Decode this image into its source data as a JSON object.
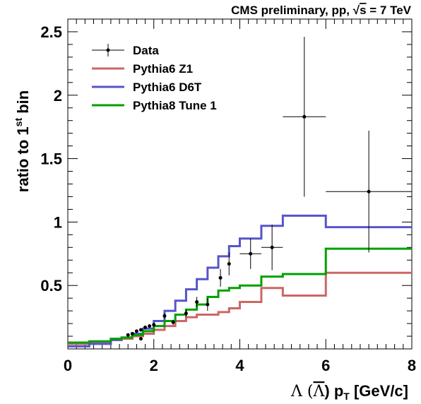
{
  "header": {
    "prefix": "CMS preliminary, pp, ",
    "sqrt_symbol": "√",
    "sqrt_arg": "s",
    "suffix": " = 7 TeV"
  },
  "axes": {
    "xlabel": {
      "lambda": "Λ (",
      "antilambda": "Λ",
      "mid": ") p",
      "sub": "T",
      "units": " [GeV/c]"
    },
    "ylabel": {
      "main": "ratio to 1",
      "sup": "st",
      "tail": " bin"
    }
  },
  "chart_data": {
    "type": "line",
    "title": "CMS preliminary, pp, √s = 7 TeV",
    "xlabel": "Λ (Λ̄) pT [GeV/c]",
    "ylabel": "ratio to 1st bin",
    "xlim": [
      0,
      8
    ],
    "ylim": [
      0,
      2.6
    ],
    "x_ticks": [
      "0",
      "2",
      "4",
      "6",
      "8"
    ],
    "y_ticks": [
      "0.5",
      "1",
      "1.5",
      "2",
      "2.5"
    ],
    "legend_position": "top-left",
    "grid": false,
    "series": [
      {
        "name": "Data",
        "kind": "points",
        "color": "#000000",
        "points": [
          {
            "x": 1.4,
            "y": 0.11,
            "ey": 0.01
          },
          {
            "x": 1.5,
            "y": 0.12,
            "ey": 0.01
          },
          {
            "x": 1.6,
            "y": 0.14,
            "ey": 0.01
          },
          {
            "x": 1.7,
            "y": 0.15,
            "ey": 0.01
          },
          {
            "x": 1.8,
            "y": 0.17,
            "ey": 0.01
          },
          {
            "x": 1.9,
            "y": 0.18,
            "ey": 0.015
          },
          {
            "x": 2.0,
            "y": 0.19,
            "ey": 0.015
          },
          {
            "x": 1.7,
            "y": 0.08,
            "ey": 0.01
          },
          {
            "x": 2.25,
            "y": 0.26,
            "ey": 0.02
          },
          {
            "x": 2.45,
            "y": 0.21,
            "ey": 0.02
          },
          {
            "x": 2.75,
            "y": 0.28,
            "ey": 0.03
          },
          {
            "x": 3.0,
            "y": 0.37,
            "ey": 0.04
          },
          {
            "x": 3.25,
            "y": 0.35,
            "ey": 0.05
          },
          {
            "x": 3.55,
            "y": 0.56,
            "ey": 0.07
          },
          {
            "x": 3.75,
            "y": 0.67,
            "ey": 0.09
          },
          {
            "x": 4.25,
            "y": 0.75,
            "ey": 0.12,
            "ex": 0.25
          },
          {
            "x": 4.75,
            "y": 0.8,
            "ey": 0.18,
            "ex": 0.25
          },
          {
            "x": 5.5,
            "y": 1.83,
            "ey": 0.63,
            "ex": 0.5
          },
          {
            "x": 7.0,
            "y": 1.24,
            "ey": 0.48,
            "ex": 1.0
          }
        ]
      },
      {
        "name": "Pythia6 Z1",
        "kind": "step",
        "color": "#cc6666",
        "edges": [
          0,
          0.5,
          1.0,
          1.25,
          1.5,
          1.75,
          2.0,
          2.25,
          2.5,
          2.75,
          3.0,
          3.25,
          3.5,
          3.75,
          4.0,
          4.5,
          5.0,
          6.0,
          8.0
        ],
        "values": [
          0.04,
          0.05,
          0.07,
          0.08,
          0.1,
          0.12,
          0.15,
          0.18,
          0.22,
          0.25,
          0.27,
          0.27,
          0.29,
          0.32,
          0.37,
          0.48,
          0.42,
          0.6
        ]
      },
      {
        "name": "Pythia6 D6T",
        "kind": "step",
        "color": "#5555cc",
        "edges": [
          0,
          0.5,
          1.0,
          1.25,
          1.5,
          1.75,
          2.0,
          2.25,
          2.5,
          2.75,
          3.0,
          3.25,
          3.5,
          3.75,
          4.0,
          4.5,
          5.0,
          6.0,
          8.0
        ],
        "values": [
          0.02,
          0.04,
          0.07,
          0.09,
          0.12,
          0.16,
          0.22,
          0.3,
          0.38,
          0.47,
          0.55,
          0.64,
          0.73,
          0.81,
          0.87,
          0.97,
          1.05,
          0.96
        ]
      },
      {
        "name": "Pythia8 Tune 1",
        "kind": "step",
        "color": "#00a000",
        "edges": [
          0,
          0.5,
          1.0,
          1.25,
          1.5,
          1.75,
          2.0,
          2.25,
          2.5,
          2.75,
          3.0,
          3.25,
          3.5,
          3.75,
          4.0,
          4.5,
          5.0,
          6.0,
          8.0
        ],
        "values": [
          0.05,
          0.06,
          0.08,
          0.09,
          0.11,
          0.14,
          0.18,
          0.22,
          0.27,
          0.31,
          0.35,
          0.41,
          0.46,
          0.48,
          0.5,
          0.57,
          0.59,
          0.79
        ]
      }
    ]
  }
}
